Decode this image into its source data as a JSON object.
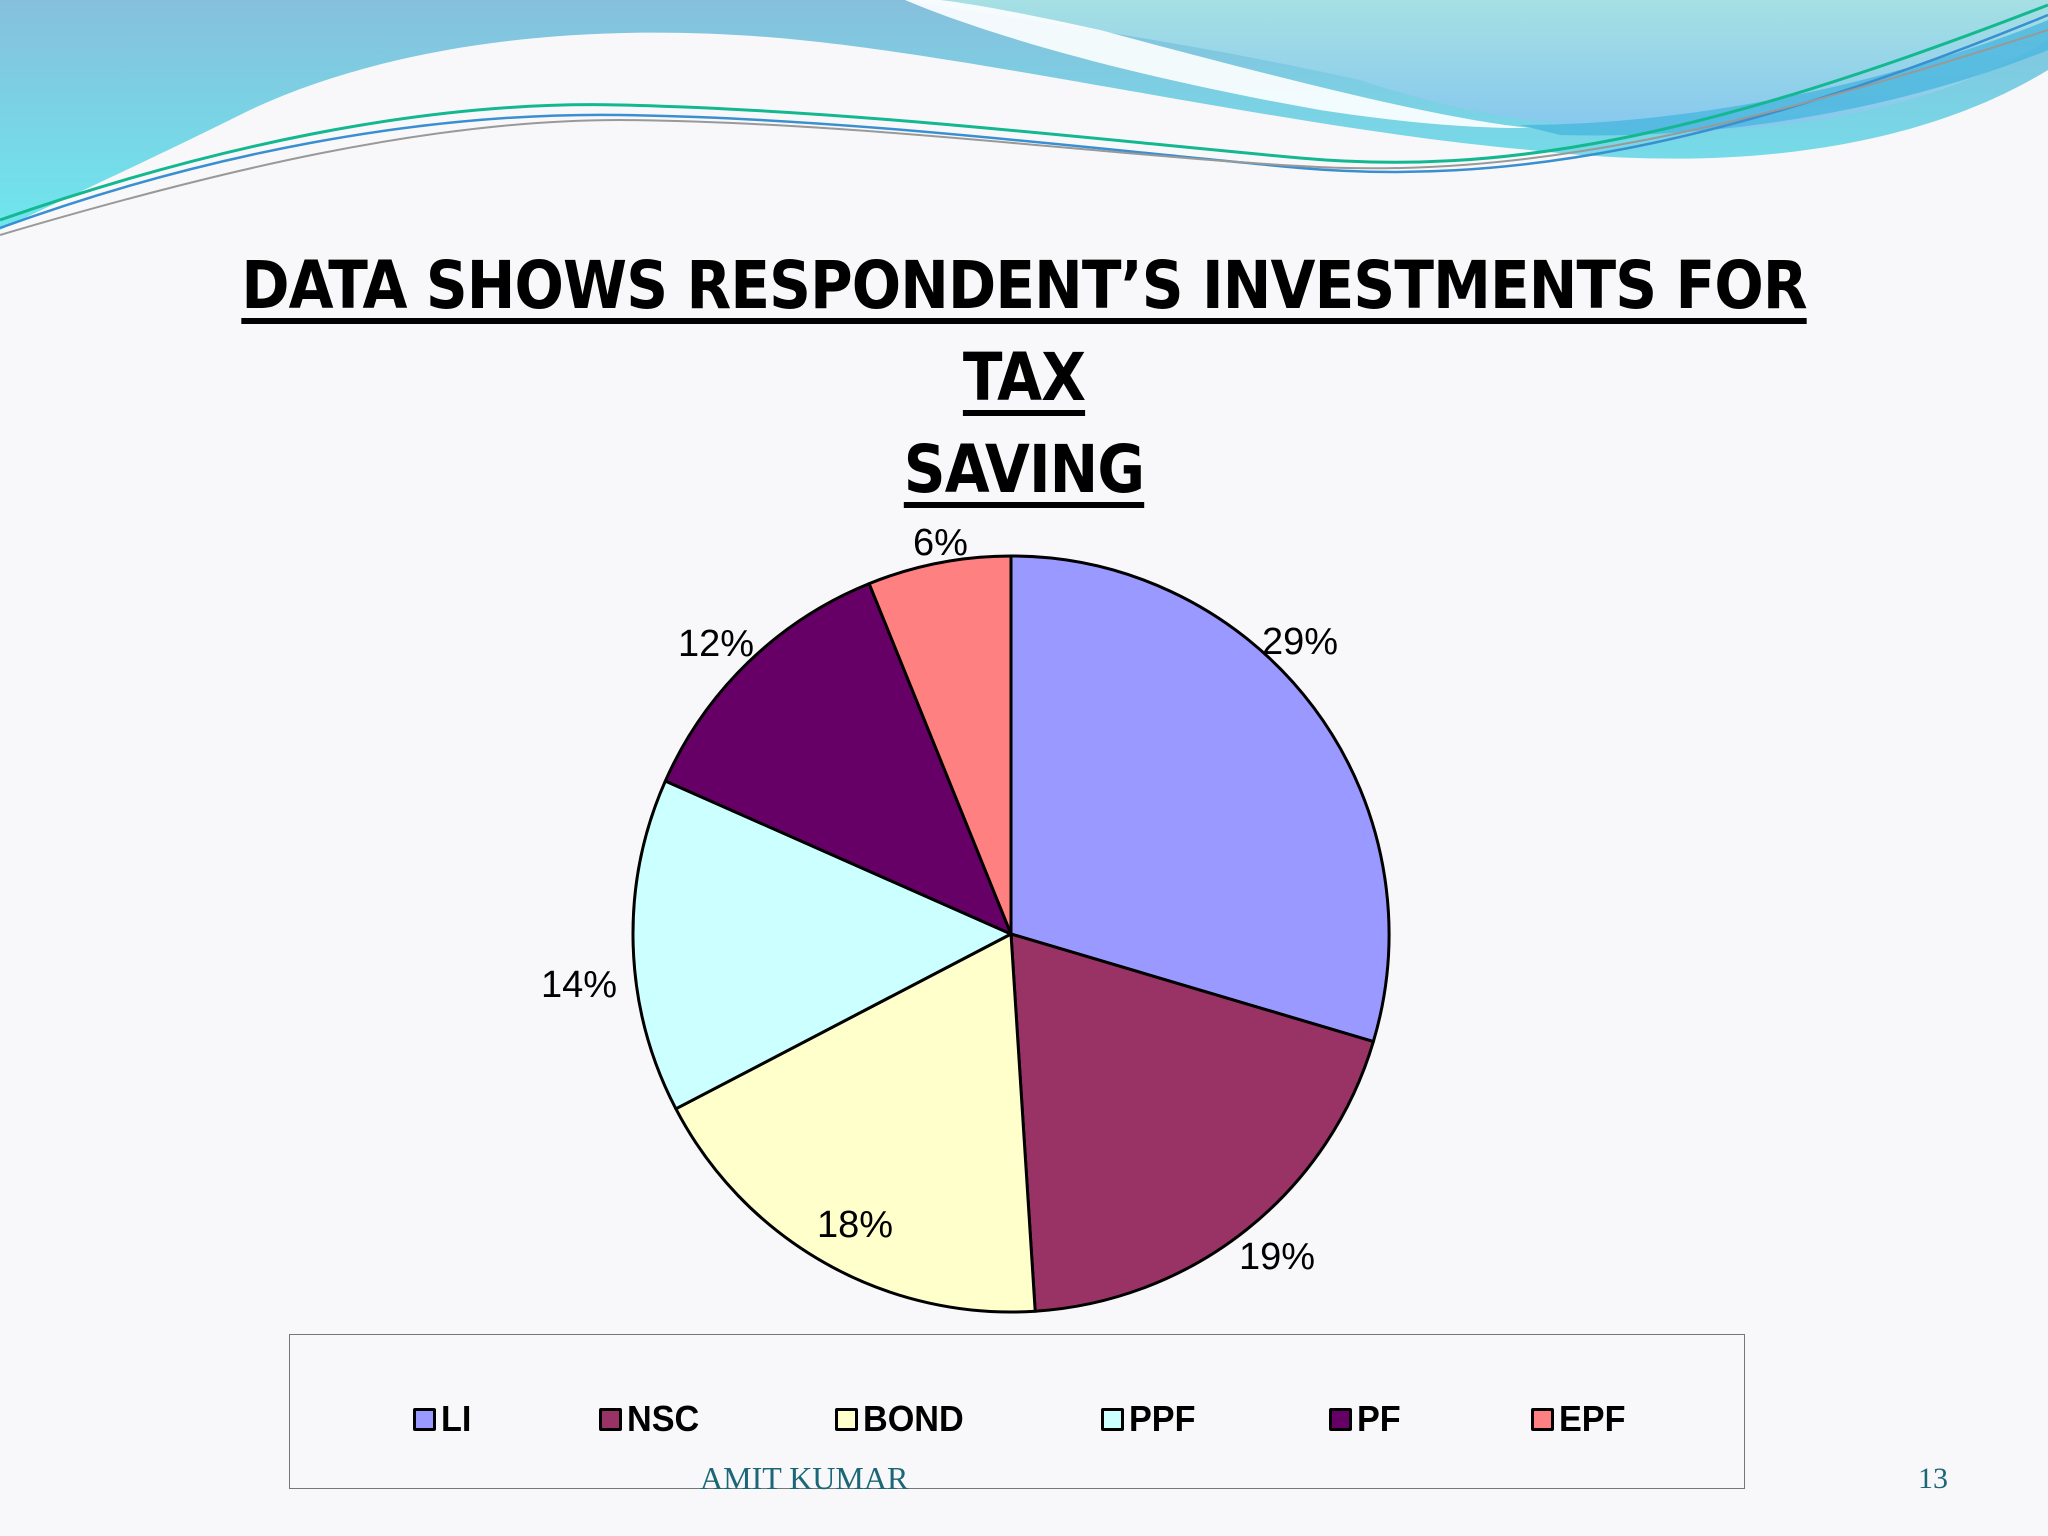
{
  "slide": {
    "title_line1": "DATA SHOWS RESPONDENT’S INVESTMENTS FOR TAX",
    "title_line2": "SAVING",
    "footer_author": "AMIT KUMAR",
    "page_number": "13"
  },
  "colors": {
    "LI": "#9999ff",
    "NSC": "#993366",
    "BOND": "#ffffcc",
    "PPF": "#ccffff",
    "PF": "#660066",
    "EPF": "#ff8080",
    "accent_teal": "#1b6677"
  },
  "chart_data": {
    "type": "pie",
    "title": "DATA SHOWS RESPONDENT’S INVESTMENTS FOR TAX SAVING",
    "categories": [
      "LI",
      "NSC",
      "BOND",
      "PPF",
      "PF",
      "EPF"
    ],
    "values": [
      29,
      19,
      18,
      14,
      12,
      6
    ],
    "unit": "%",
    "data_labels": [
      "29%",
      "19%",
      "18%",
      "14%",
      "12%",
      "6%"
    ],
    "colors": [
      "#9999ff",
      "#993366",
      "#ffffcc",
      "#ccffff",
      "#660066",
      "#ff8080"
    ],
    "start_angle": "12 o'clock, clockwise",
    "legend_position": "bottom",
    "xlabel": "",
    "ylabel": ""
  },
  "legend": {
    "items": [
      {
        "label": "LI",
        "color": "#9999ff"
      },
      {
        "label": "NSC",
        "color": "#993366"
      },
      {
        "label": "BOND",
        "color": "#ffffcc"
      },
      {
        "label": "PPF",
        "color": "#ccffff"
      },
      {
        "label": "PF",
        "color": "#660066"
      },
      {
        "label": "EPF",
        "color": "#ff8080"
      }
    ]
  }
}
